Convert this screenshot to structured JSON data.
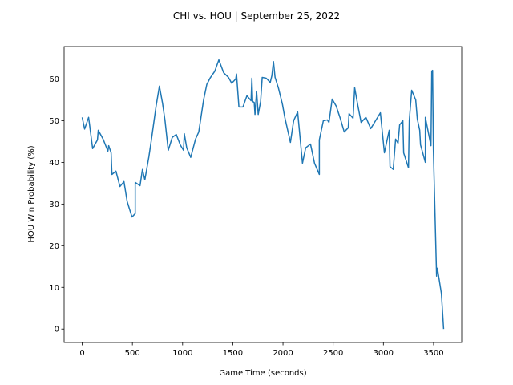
{
  "chart_data": {
    "type": "line",
    "title": "CHI vs. HOU | September 25, 2022",
    "x_label": "Game Time (seconds)",
    "y_label": "HOU Win Probability (%)",
    "color": "#1f77b4",
    "grid": false,
    "xlim": [
      -180,
      3780
    ],
    "ylim": [
      -3.23,
      67.8
    ],
    "xticks": [
      0,
      500,
      1000,
      1500,
      2000,
      2500,
      3000,
      3500
    ],
    "yticks": [
      0,
      10,
      20,
      30,
      40,
      50,
      60
    ],
    "x": [
      0,
      24,
      64,
      104,
      152,
      160,
      208,
      256,
      264,
      288,
      296,
      336,
      376,
      416,
      448,
      496,
      528,
      528,
      576,
      600,
      624,
      664,
      688,
      736,
      769,
      800,
      825,
      857,
      897,
      937,
      977,
      1009,
      1017,
      1041,
      1081,
      1129,
      1161,
      1209,
      1241,
      1273,
      1321,
      1361,
      1409,
      1457,
      1489,
      1529,
      1537,
      1561,
      1601,
      1641,
      1682,
      1690,
      1698,
      1713,
      1721,
      1737,
      1753,
      1777,
      1793,
      1833,
      1873,
      1889,
      1905,
      1921,
      1954,
      1994,
      2018,
      2074,
      2106,
      2146,
      2194,
      2226,
      2274,
      2314,
      2362,
      2362,
      2402,
      2442,
      2458,
      2490,
      2530,
      2570,
      2610,
      2650,
      2658,
      2698,
      2714,
      2746,
      2778,
      2826,
      2874,
      2922,
      2970,
      3010,
      3058,
      3066,
      3098,
      3122,
      3146,
      3162,
      3194,
      3202,
      3250,
      3258,
      3282,
      3322,
      3338,
      3362,
      3370,
      3418,
      3418,
      3474,
      3482,
      3490,
      3498,
      3530,
      3538,
      3578,
      3600
    ],
    "values": [
      50.8,
      48,
      50.8,
      43.3,
      45.4,
      47.7,
      45.6,
      42.7,
      44,
      42.3,
      37.1,
      37.9,
      34.2,
      35.4,
      30.6,
      26.9,
      27.7,
      35.2,
      34.4,
      38.3,
      35.8,
      41.3,
      45.2,
      53.5,
      58.3,
      54.2,
      50,
      42.9,
      46,
      46.7,
      44.2,
      42.9,
      46.9,
      43.5,
      41.2,
      45.6,
      47.3,
      55,
      58.7,
      60.2,
      61.9,
      64.6,
      61.5,
      60.4,
      59,
      60,
      61.2,
      53.3,
      53.3,
      56,
      54.8,
      60.2,
      54.6,
      54.4,
      51.5,
      57.1,
      51.5,
      54.6,
      60.4,
      60.2,
      59.2,
      60.8,
      64.2,
      60.4,
      57.9,
      54,
      50.8,
      44.8,
      50,
      52.1,
      39.8,
      43.5,
      44.4,
      39.8,
      37.1,
      45.4,
      50,
      50.2,
      49.6,
      55.2,
      53.5,
      50.6,
      47.3,
      48.3,
      51.7,
      50.6,
      57.9,
      53.6,
      49.6,
      50.8,
      48.1,
      50,
      51.9,
      42.3,
      47.7,
      39,
      38.3,
      45.6,
      44.6,
      49,
      50,
      42.3,
      38.7,
      50,
      57.3,
      55,
      50.4,
      47.7,
      44.2,
      40,
      50.8,
      44,
      61.9,
      62.1,
      43.1,
      12.7,
      14.6,
      8.5,
      0
    ]
  }
}
